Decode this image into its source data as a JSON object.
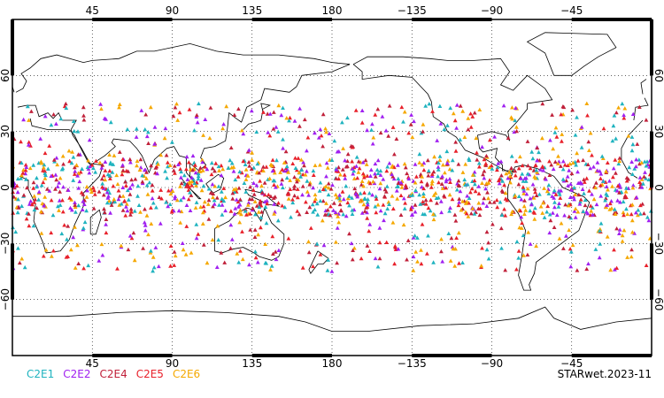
{
  "map": {
    "top_lon_labels": [
      "45",
      "90",
      "135",
      "180",
      "−135",
      "−90",
      "−45"
    ],
    "bottom_lon_labels": [
      "45",
      "90",
      "135",
      "180",
      "−135",
      "−90",
      "−45"
    ],
    "lon_values": [
      45,
      90,
      135,
      180,
      225,
      270,
      315
    ],
    "lat_labels": [
      "60",
      "30",
      "0",
      "−30",
      "−60"
    ],
    "lat_values": [
      60,
      30,
      0,
      -30,
      -60
    ],
    "lon_range": [
      0,
      360
    ],
    "lat_range": [
      -90,
      90
    ],
    "lat_band_of_points": [
      -45,
      45
    ]
  },
  "legend": [
    {
      "label": "C2E1",
      "color": "#1fb3bf"
    },
    {
      "label": "C2E2",
      "color": "#a020f0"
    },
    {
      "label": "C2E4",
      "color": "#c0203a"
    },
    {
      "label": "C2E5",
      "color": "#e8202a"
    },
    {
      "label": "C2E6",
      "color": "#f5a800"
    }
  ],
  "footer": {
    "label": "STARwet.2023-11"
  }
}
